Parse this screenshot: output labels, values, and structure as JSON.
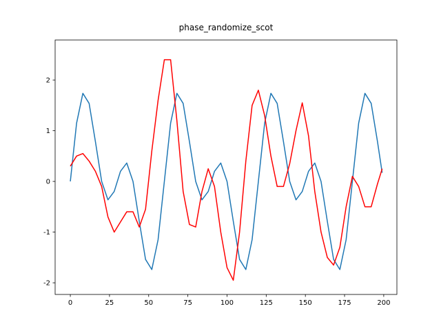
{
  "chart_data": {
    "type": "line",
    "title": "phase_randomize_scot",
    "x": [
      0,
      4,
      8,
      12,
      16,
      20,
      24,
      28,
      32,
      36,
      40,
      44,
      48,
      52,
      56,
      60,
      64,
      68,
      72,
      76,
      80,
      84,
      88,
      92,
      96,
      100,
      104,
      108,
      112,
      116,
      120,
      124,
      128,
      132,
      136,
      140,
      144,
      148,
      152,
      156,
      160,
      164,
      168,
      172,
      176,
      180,
      184,
      188,
      192,
      196,
      199
    ],
    "series": [
      {
        "color": "#1f77b4",
        "values": [
          0,
          1.15,
          1.738,
          1.539,
          0.787,
          0,
          -0.363,
          -0.199,
          0.199,
          0.363,
          0,
          -0.787,
          -1.539,
          -1.738,
          -1.15,
          0,
          1.15,
          1.738,
          1.539,
          0.787,
          0,
          -0.363,
          -0.199,
          0.199,
          0.363,
          0,
          -0.787,
          -1.539,
          -1.738,
          -1.15,
          0,
          1.15,
          1.738,
          1.539,
          0.787,
          0,
          -0.363,
          -0.199,
          0.199,
          0.363,
          0,
          -0.787,
          -1.539,
          -1.738,
          -1.15,
          0,
          1.15,
          1.738,
          1.539,
          0.787,
          0.171
        ]
      },
      {
        "color": "#ff0000",
        "values": [
          0.3,
          0.5,
          0.55,
          0.4,
          0.2,
          -0.1,
          -0.7,
          -1.0,
          -0.8,
          -0.6,
          -0.6,
          -0.9,
          -0.55,
          0.6,
          1.6,
          2.4,
          2.4,
          1.2,
          -0.2,
          -0.85,
          -0.9,
          -0.2,
          0.25,
          -0.1,
          -1.0,
          -1.7,
          -1.95,
          -1.0,
          0.4,
          1.5,
          1.8,
          1.3,
          0.5,
          -0.1,
          -0.1,
          0.35,
          1.0,
          1.55,
          0.9,
          -0.2,
          -1.0,
          -1.5,
          -1.65,
          -1.3,
          -0.5,
          0.1,
          -0.1,
          -0.5,
          -0.5,
          -0.05,
          0.25
        ]
      }
    ],
    "xlim": [
      -9.7,
      208.4
    ],
    "ylim": [
      -2.23,
      2.79
    ],
    "xticks": [
      0,
      25,
      50,
      75,
      100,
      125,
      150,
      175,
      200
    ],
    "yticks": [
      -2,
      -1,
      0,
      1,
      2
    ]
  }
}
